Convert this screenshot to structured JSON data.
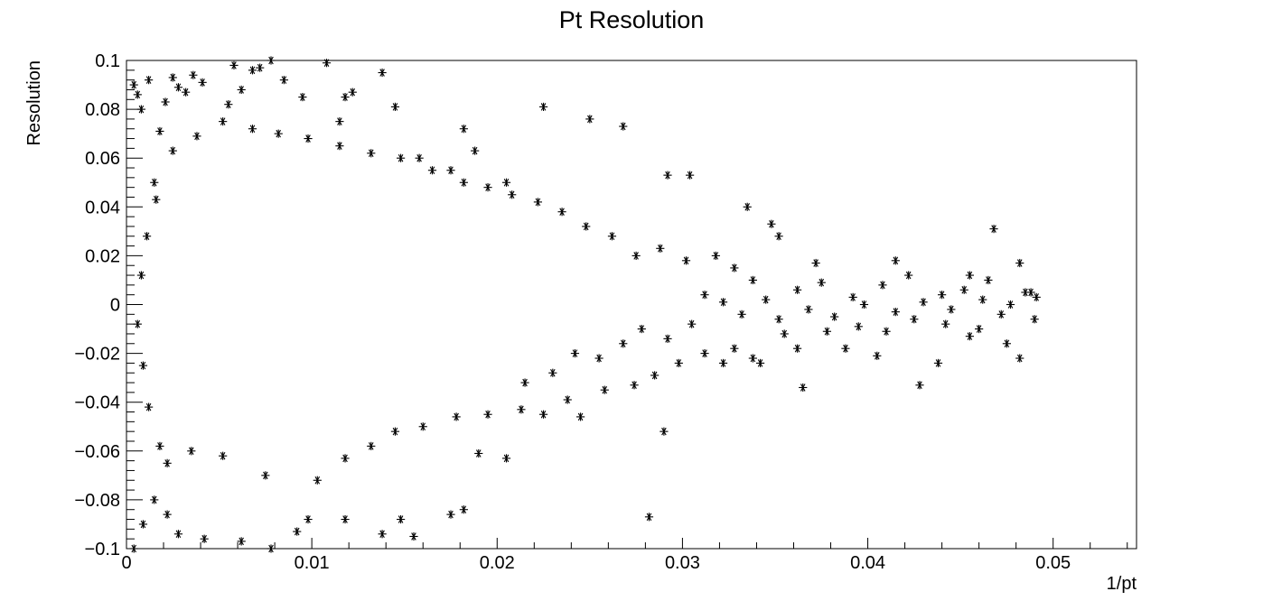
{
  "chart_data": {
    "type": "scatter",
    "title": "Pt Resolution",
    "xlabel": "1/pt",
    "ylabel": "Resolution",
    "xlim": [
      0,
      0.0545
    ],
    "ylim": [
      -0.1,
      0.1
    ],
    "xticks": [
      0,
      0.01,
      0.02,
      0.03,
      0.04,
      0.05
    ],
    "xtick_labels": [
      "0",
      "0.01",
      "0.02",
      "0.03",
      "0.04",
      "0.05"
    ],
    "yticks": [
      0.1,
      0.08,
      0.06,
      0.04,
      0.02,
      0,
      -0.02,
      -0.04,
      -0.06,
      -0.08,
      -0.1
    ],
    "ytick_labels": [
      "0.1",
      "0.08",
      "0.06",
      "0.04",
      "0.02",
      "0",
      "−0.02",
      "−0.04",
      "−0.06",
      "−0.08",
      "−0.1"
    ],
    "grid": false,
    "legend": "none",
    "marker": "asterisk",
    "marker_color": "#000000",
    "series": [
      {
        "points": [
          [
            0.0004,
            0.09
          ],
          [
            0.0006,
            0.086
          ],
          [
            0.0008,
            0.08
          ],
          [
            0.0012,
            0.092
          ],
          [
            0.0015,
            0.05
          ],
          [
            0.0018,
            0.071
          ],
          [
            0.0021,
            0.083
          ],
          [
            0.0025,
            0.093
          ],
          [
            0.0028,
            0.089
          ],
          [
            0.0032,
            0.087
          ],
          [
            0.0036,
            0.094
          ],
          [
            0.0041,
            0.091
          ],
          [
            0.0055,
            0.082
          ],
          [
            0.0058,
            0.098
          ],
          [
            0.0062,
            0.088
          ],
          [
            0.0068,
            0.096
          ],
          [
            0.0072,
            0.097
          ],
          [
            0.0078,
            0.1
          ],
          [
            0.0085,
            0.092
          ],
          [
            0.0095,
            0.085
          ],
          [
            0.0108,
            0.099
          ],
          [
            0.0115,
            0.075
          ],
          [
            0.0118,
            0.085
          ],
          [
            0.0122,
            0.087
          ],
          [
            0.0138,
            0.095
          ],
          [
            0.0145,
            0.081
          ],
          [
            0.0158,
            0.06
          ],
          [
            0.0175,
            0.055
          ],
          [
            0.0182,
            0.072
          ],
          [
            0.0188,
            0.063
          ],
          [
            0.0205,
            0.05
          ],
          [
            0.0225,
            0.081
          ],
          [
            0.025,
            0.076
          ],
          [
            0.0268,
            0.073
          ],
          [
            0.0292,
            0.053
          ],
          [
            0.0304,
            0.053
          ],
          [
            0.0335,
            0.04
          ],
          [
            0.0348,
            0.033
          ],
          [
            0.0352,
            0.028
          ],
          [
            0.0372,
            0.017
          ],
          [
            0.0415,
            0.018
          ],
          [
            0.0455,
            0.012
          ],
          [
            0.0468,
            0.031
          ],
          [
            0.0482,
            0.017
          ],
          [
            0.0488,
            0.005
          ],
          [
            0.0491,
            0.003
          ],
          [
            0.049,
            -0.006
          ],
          [
            0.0482,
            -0.022
          ],
          [
            0.0475,
            -0.016
          ],
          [
            0.0455,
            -0.013
          ],
          [
            0.0438,
            -0.024
          ],
          [
            0.0428,
            -0.033
          ],
          [
            0.0405,
            -0.021
          ],
          [
            0.0388,
            -0.018
          ],
          [
            0.0365,
            -0.034
          ],
          [
            0.0342,
            -0.024
          ],
          [
            0.0322,
            -0.024
          ],
          [
            0.029,
            -0.052
          ],
          [
            0.0282,
            -0.087
          ],
          [
            0.0245,
            -0.046
          ],
          [
            0.0225,
            -0.045
          ],
          [
            0.0205,
            -0.063
          ],
          [
            0.019,
            -0.061
          ],
          [
            0.0182,
            -0.084
          ],
          [
            0.0175,
            -0.086
          ],
          [
            0.0155,
            -0.095
          ],
          [
            0.0148,
            -0.088
          ],
          [
            0.0138,
            -0.094
          ],
          [
            0.0118,
            -0.088
          ],
          [
            0.0098,
            -0.088
          ],
          [
            0.0092,
            -0.093
          ],
          [
            0.0078,
            -0.1
          ],
          [
            0.0062,
            -0.097
          ],
          [
            0.0042,
            -0.096
          ],
          [
            0.0028,
            -0.094
          ],
          [
            0.0022,
            -0.086
          ],
          [
            0.0015,
            -0.08
          ],
          [
            0.0009,
            -0.09
          ],
          [
            0.0004,
            -0.1
          ],
          [
            0.0022,
            -0.065
          ],
          [
            0.0035,
            -0.06
          ],
          [
            0.0052,
            -0.062
          ],
          [
            0.0075,
            -0.07
          ],
          [
            0.0103,
            -0.072
          ],
          [
            0.0118,
            -0.063
          ],
          [
            0.0132,
            -0.058
          ],
          [
            0.0145,
            -0.052
          ],
          [
            0.016,
            -0.05
          ],
          [
            0.0178,
            -0.046
          ],
          [
            0.0195,
            -0.045
          ],
          [
            0.0213,
            -0.043
          ],
          [
            0.0238,
            -0.039
          ],
          [
            0.0258,
            -0.035
          ],
          [
            0.0274,
            -0.033
          ],
          [
            0.0285,
            -0.029
          ],
          [
            0.0298,
            -0.024
          ],
          [
            0.0312,
            -0.02
          ],
          [
            0.0328,
            -0.018
          ],
          [
            0.0338,
            -0.022
          ],
          [
            0.0355,
            -0.012
          ],
          [
            0.0362,
            -0.018
          ],
          [
            0.0378,
            -0.011
          ],
          [
            0.0395,
            -0.009
          ],
          [
            0.041,
            -0.011
          ],
          [
            0.0425,
            -0.006
          ],
          [
            0.0442,
            -0.008
          ],
          [
            0.046,
            -0.01
          ],
          [
            0.0472,
            -0.004
          ],
          [
            0.0362,
            0.006
          ],
          [
            0.0375,
            0.009
          ],
          [
            0.0392,
            0.003
          ],
          [
            0.0408,
            0.008
          ],
          [
            0.0422,
            0.012
          ],
          [
            0.044,
            0.004
          ],
          [
            0.0452,
            0.006
          ],
          [
            0.0465,
            0.01
          ],
          [
            0.0477,
            0.0
          ],
          [
            0.0338,
            0.01
          ],
          [
            0.0328,
            0.015
          ],
          [
            0.0318,
            0.02
          ],
          [
            0.0302,
            0.018
          ],
          [
            0.0288,
            0.023
          ],
          [
            0.0275,
            0.02
          ],
          [
            0.0262,
            0.028
          ],
          [
            0.0248,
            0.032
          ],
          [
            0.0235,
            0.038
          ],
          [
            0.0222,
            0.042
          ],
          [
            0.0208,
            0.045
          ],
          [
            0.0195,
            0.048
          ],
          [
            0.0182,
            0.05
          ],
          [
            0.0165,
            0.055
          ],
          [
            0.0148,
            0.06
          ],
          [
            0.0132,
            0.062
          ],
          [
            0.0115,
            0.065
          ],
          [
            0.0098,
            0.068
          ],
          [
            0.0082,
            0.07
          ],
          [
            0.0068,
            0.072
          ],
          [
            0.0052,
            0.075
          ],
          [
            0.0038,
            0.069
          ],
          [
            0.0025,
            0.063
          ],
          [
            0.0016,
            0.043
          ],
          [
            0.0011,
            0.028
          ],
          [
            0.0008,
            0.012
          ],
          [
            0.0006,
            -0.008
          ],
          [
            0.0009,
            -0.025
          ],
          [
            0.0012,
            -0.042
          ],
          [
            0.0018,
            -0.058
          ],
          [
            0.0305,
            -0.008
          ],
          [
            0.0292,
            -0.014
          ],
          [
            0.0278,
            -0.01
          ],
          [
            0.0268,
            -0.016
          ],
          [
            0.0255,
            -0.022
          ],
          [
            0.0242,
            -0.02
          ],
          [
            0.023,
            -0.028
          ],
          [
            0.0215,
            -0.032
          ],
          [
            0.0312,
            0.004
          ],
          [
            0.0322,
            0.001
          ],
          [
            0.0332,
            -0.004
          ],
          [
            0.0345,
            0.002
          ],
          [
            0.0352,
            -0.006
          ],
          [
            0.0368,
            -0.002
          ],
          [
            0.0382,
            -0.005
          ],
          [
            0.0398,
            0.0
          ],
          [
            0.0415,
            -0.003
          ],
          [
            0.043,
            0.001
          ],
          [
            0.0445,
            -0.002
          ],
          [
            0.0462,
            0.002
          ],
          [
            0.0485,
            0.005
          ]
        ]
      }
    ]
  }
}
